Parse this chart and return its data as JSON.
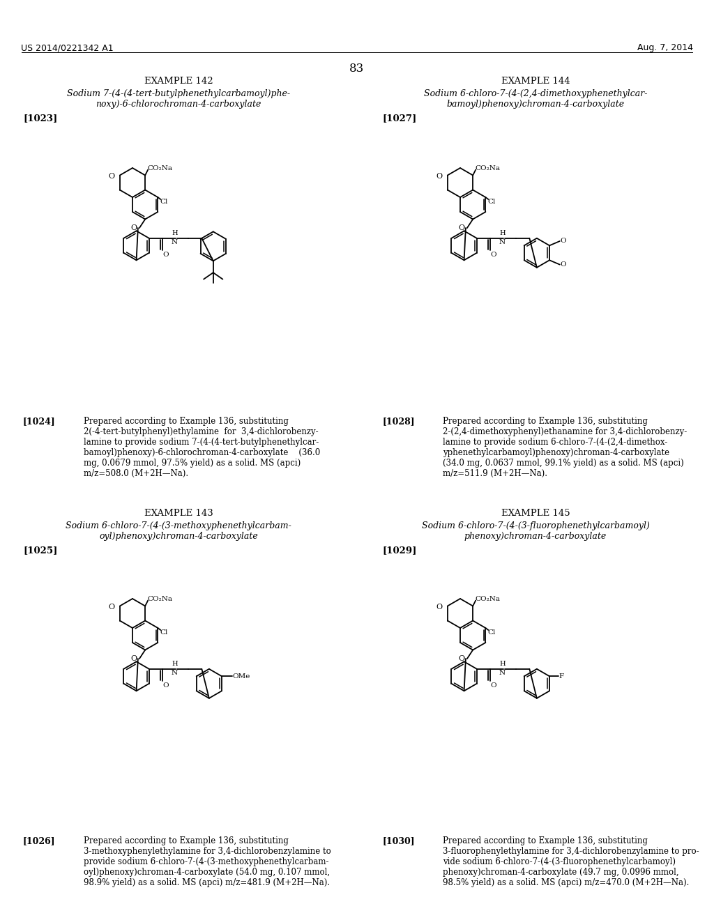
{
  "header_left": "US 2014/0221342 A1",
  "header_right": "Aug. 7, 2014",
  "page_number": "83",
  "bg_color": "#ffffff",
  "examples": [
    {
      "id": "EXAMPLE 142",
      "title_lines": [
        "Sodium 7-(4-(4-tert-butylphenethylcarbamoyl)phe-",
        "noxy)-6-chlorochroman-4-carboxylate"
      ],
      "ref": "[1023]",
      "desc_ref": "[1024]",
      "desc": "Prepared according to Example 136, substituting 2(-4-tert-butylphenyl)ethylamine  for  3,4-dichlorobenzylamine to provide sodium 7-(4-(4-tert-butylphenethylcarbamoyl)phenoxy)-6-chlorochroman-4-carboxylate    (36.0 mg, 0.0679 mmol, 97.5% yield) as a solid. MS (apci) m/z=508.0 (M+2H—Na).",
      "col": 0
    },
    {
      "id": "EXAMPLE 144",
      "title_lines": [
        "Sodium 6-chloro-7-(4-(2,4-dimethoxyphenethylcar-",
        "bamoyl)phenoxy)chroman-4-carboxylate"
      ],
      "ref": "[1027]",
      "desc_ref": "[1028]",
      "desc": "Prepared according to Example 136, substituting 2-(2,4-dimethoxyphenyl)ethanamine for 3,4-dichlorobenzylamine to provide sodium 6-chloro-7-(4-(2,4-dimethoxyphenethylcarbamoyl)phenoxy)chroman-4-carboxylate (34.0 mg, 0.0637 mmol, 99.1% yield) as a solid. MS (apci) m/z=511.9 (M+2H—Na).",
      "col": 1
    },
    {
      "id": "EXAMPLE 143",
      "title_lines": [
        "Sodium 6-chloro-7-(4-(3-methoxyphenethylcarbam-",
        "oyl)phenoxy)chroman-4-carboxylate"
      ],
      "ref": "[1025]",
      "desc_ref": "[1026]",
      "desc": "Prepared according to Example 136, substituting 3-methoxyphenylethylamine for 3,4-dichlorobenzylamine to provide sodium 6-chloro-7-(4-(3-methoxyphenethylcarbamoyl)phenoxy)chroman-4-carboxylate (54.0 mg, 0.107 mmol, 98.9% yield) as a solid. MS (apci) m/z=481.9 (M+2H—Na).",
      "col": 0
    },
    {
      "id": "EXAMPLE 145",
      "title_lines": [
        "Sodium 6-chloro-7-(4-(3-fluorophenethylcarbamoyl)",
        "phenoxy)chroman-4-carboxylate"
      ],
      "ref": "[1029]",
      "desc_ref": "[1030]",
      "desc": "Prepared according to Example 136, substituting 3-fluorophenylethylamine for 3,4-dichlorobenzylamine to provide sodium 6-chloro-7-(4-(3-fluorophenethylcarbamoyl)phenoxy)chroman-4-carboxylate (49.7 mg, 0.0996 mmol, 98.5% yield) as a solid. MS (apci) m/z=470.0 (M+2H—Na).",
      "col": 1
    }
  ]
}
